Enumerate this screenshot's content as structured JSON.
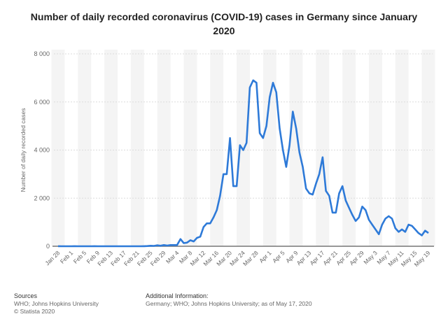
{
  "chart_data": {
    "type": "line",
    "title": "Number of daily recorded coronavirus (COVID-19) cases in Germany since January 2020",
    "xlabel": "",
    "ylabel": "Number of daily recorded cases",
    "ylim": [
      0,
      8000
    ],
    "y_ticks": [
      0,
      2000,
      4000,
      6000,
      8000
    ],
    "y_tick_labels": [
      "0",
      "2 000",
      "4 000",
      "6 000",
      "8 000"
    ],
    "x_tick_labels": [
      "Jan 28",
      "Feb 1",
      "Feb 5",
      "Feb 9",
      "Feb 13",
      "Feb 17",
      "Feb 21",
      "Feb 25",
      "Feb 29",
      "Mar 4",
      "Mar 8",
      "Mar 12",
      "Mar 16",
      "Mar 20",
      "Mar 24",
      "Mar 28",
      "Apr 1",
      "Apr 5",
      "Apr 9",
      "Apr 13",
      "Apr 17",
      "Apr 21",
      "Apr 25",
      "Apr 29",
      "May 3",
      "May 7",
      "May 11",
      "May 15",
      "May 19"
    ],
    "grid": true,
    "color": "#2e7ad8",
    "series": [
      {
        "values": [
          4,
          0,
          0,
          0,
          1,
          2,
          0,
          0,
          0,
          1,
          0,
          2,
          0,
          0,
          0,
          0,
          0,
          0,
          0,
          0,
          0,
          0,
          0,
          0,
          0,
          0,
          2,
          10,
          20,
          15,
          40,
          20,
          50,
          30,
          50,
          50,
          50,
          300,
          130,
          150,
          250,
          200,
          350,
          400,
          800,
          950,
          950,
          1200,
          1500,
          2100,
          3000,
          3000,
          4500,
          2500,
          2500,
          4200,
          4000,
          4300,
          6600,
          6900,
          6800,
          4700,
          4500,
          5000,
          6200,
          6800,
          6400,
          4900,
          4000,
          3300,
          4200,
          5600,
          4900,
          3900,
          3300,
          2400,
          2200,
          2150,
          2600,
          3000,
          3700,
          2300,
          2100,
          1400,
          1400,
          2200,
          2500,
          1900,
          1600,
          1300,
          1050,
          1200,
          1650,
          1500,
          1100,
          900,
          700,
          500,
          900,
          1150,
          1250,
          1150,
          750,
          600,
          700,
          600,
          900,
          850,
          700,
          550,
          450,
          650,
          550
        ]
      }
    ]
  },
  "footer": {
    "sources_title": "Sources",
    "sources": "WHO; Johns Hopkins University",
    "copyright": "© Statista 2020",
    "info_title": "Additional Information:",
    "info": "Germany; WHO; Johns Hopkins University; as of May 17, 2020"
  }
}
